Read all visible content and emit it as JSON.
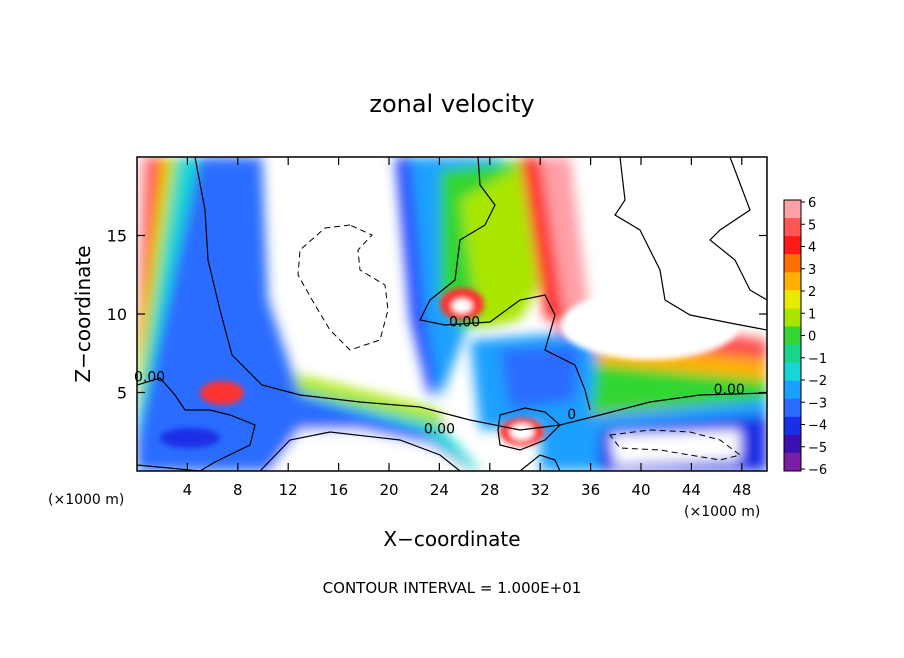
{
  "chart_data": {
    "type": "heatmap",
    "title": "zonal velocity",
    "xlabel": "X−coordinate",
    "ylabel": "Z−coordinate",
    "x_unit_left": "(×1000 m)",
    "x_unit_right": "(×1000 m)",
    "xlim": [
      0,
      50
    ],
    "ylim": [
      0,
      20
    ],
    "x_ticks": [
      4,
      8,
      12,
      16,
      20,
      24,
      28,
      32,
      36,
      40,
      44,
      48
    ],
    "y_ticks": [
      5,
      10,
      15
    ],
    "colorbar": {
      "ticks": [
        "6",
        "5",
        "4",
        "3",
        "2",
        "1",
        "0",
        "−1",
        "−2",
        "−3",
        "−4",
        "−5",
        "−6"
      ],
      "values": [
        6,
        5,
        4,
        3,
        2,
        1,
        0,
        -1,
        -2,
        -3,
        -4,
        -5,
        -6
      ],
      "colors": [
        "#ff9fa6",
        "#ff5555",
        "#ff1a1a",
        "#ff6e00",
        "#ffb000",
        "#eaea00",
        "#a8e600",
        "#33d633",
        "#19d68c",
        "#19d6d6",
        "#1aa0ff",
        "#2a6cff",
        "#1a2ee6",
        "#3c0fb4",
        "#7b1fa2"
      ]
    },
    "contour_labels": [
      {
        "text": "0.00",
        "x": 1,
        "z": 5.7
      },
      {
        "text": "0.00",
        "x": 26,
        "z": 9.2
      },
      {
        "text": "0.00",
        "x": 24,
        "z": 2.4
      },
      {
        "text": "0.00",
        "x": 47,
        "z": 4.9
      },
      {
        "text": "0",
        "x": 34.5,
        "z": 3.3
      }
    ],
    "footer": "CONTOUR INTERVAL = 1.000E+01"
  }
}
